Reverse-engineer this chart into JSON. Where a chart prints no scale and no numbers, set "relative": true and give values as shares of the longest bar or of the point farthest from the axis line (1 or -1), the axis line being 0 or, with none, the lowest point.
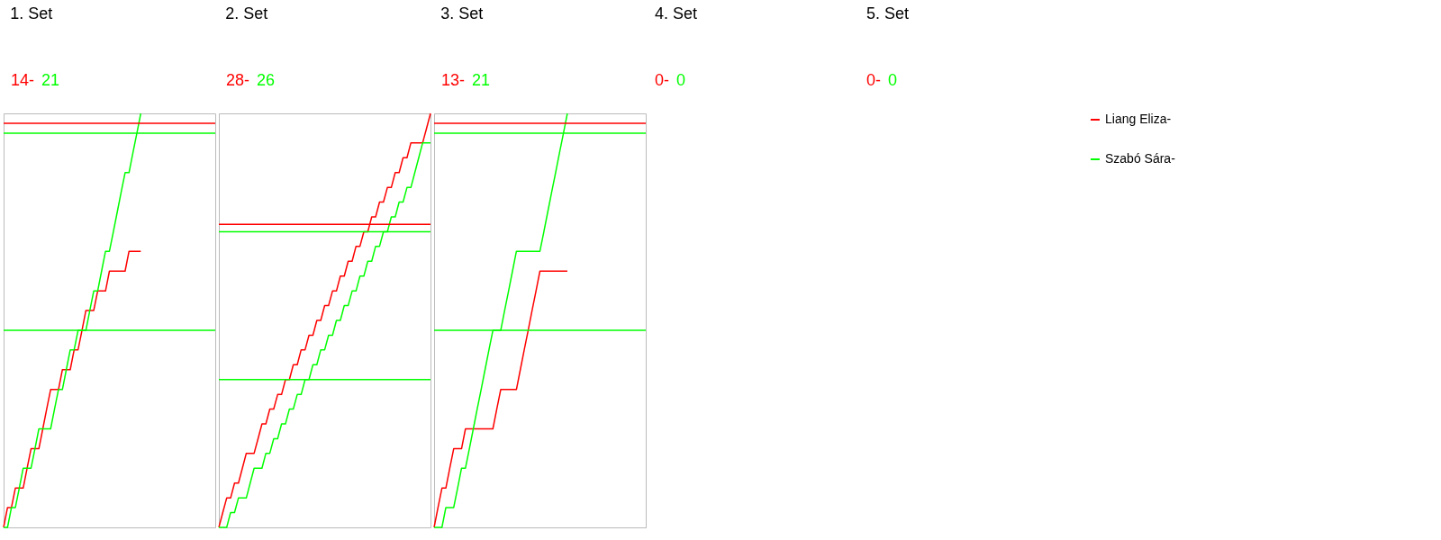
{
  "chart_data": [
    {
      "type": "line",
      "relative": true,
      "title": "1. Set",
      "annotations": [
        "14-",
        "21"
      ],
      "legend": "right",
      "categories": [
        null,
        null,
        null,
        null,
        null,
        null,
        null,
        null,
        null,
        null,
        null,
        null,
        null,
        null,
        null,
        null,
        null,
        null,
        null,
        null,
        null,
        null,
        null,
        null,
        null,
        null,
        null,
        null,
        null,
        null,
        null,
        null,
        null,
        null,
        null,
        null,
        null,
        null,
        null,
        null,
        null,
        null,
        null,
        null,
        null,
        null,
        null,
        null,
        null,
        null,
        null,
        null,
        null,
        null,
        null
      ],
      "series": [
        {
          "name": "Liang Eliza-",
          "color": "#ff0000",
          "values": [
            0,
            0.048,
            0.048,
            0.095,
            0.095,
            0.095,
            0.143,
            0.19,
            0.19,
            0.19,
            0.238,
            0.286,
            0.333,
            0.333,
            0.333,
            0.381,
            0.381,
            0.381,
            0.429,
            0.429,
            0.476,
            0.524,
            0.524,
            0.524,
            0.571,
            0.571,
            0.571,
            0.619,
            0.619,
            0.619,
            0.619,
            0.619,
            0.667,
            0.667,
            0.667,
            0.667,
            null,
            null,
            null,
            null,
            null,
            null,
            null,
            null,
            null,
            null,
            null,
            null,
            null,
            null,
            null,
            null,
            null,
            null,
            null
          ]
        },
        {
          "name": "Szabó Sára-",
          "color": "#00ff00",
          "values": [
            0,
            0,
            0.048,
            0.048,
            0.095,
            0.143,
            0.143,
            0.143,
            0.19,
            0.238,
            0.238,
            0.238,
            0.238,
            0.286,
            0.333,
            0.333,
            0.381,
            0.429,
            0.429,
            0.476,
            0.476,
            0.476,
            0.524,
            0.571,
            0.571,
            0.619,
            0.667,
            0.667,
            0.714,
            0.762,
            0.81,
            0.857,
            0.857,
            0.905,
            0.952,
            1,
            null,
            null,
            null,
            null,
            null,
            null,
            null,
            null,
            null,
            null,
            null,
            null,
            null,
            null,
            null,
            null,
            null,
            null,
            null
          ]
        }
      ],
      "ref_lines": [
        {
          "axis": "y",
          "value": 0.976,
          "color": "#ff0000"
        },
        {
          "axis": "y",
          "value": 0.952,
          "color": "#00ff00"
        },
        {
          "axis": "y",
          "value": 0.476,
          "color": "#00ff00"
        }
      ]
    },
    {
      "type": "line",
      "relative": true,
      "title": "2. Set",
      "annotations": [
        "28-",
        "26"
      ],
      "categories": [
        null,
        null,
        null,
        null,
        null,
        null,
        null,
        null,
        null,
        null,
        null,
        null,
        null,
        null,
        null,
        null,
        null,
        null,
        null,
        null,
        null,
        null,
        null,
        null,
        null,
        null,
        null,
        null,
        null,
        null,
        null,
        null,
        null,
        null,
        null,
        null,
        null,
        null,
        null,
        null,
        null,
        null,
        null,
        null,
        null,
        null,
        null,
        null,
        null,
        null,
        null,
        null,
        null,
        null,
        null
      ],
      "series": [
        {
          "color": "#ff0000",
          "values": [
            0,
            0.036,
            0.071,
            0.071,
            0.107,
            0.107,
            0.143,
            0.179,
            0.179,
            0.179,
            0.214,
            0.25,
            0.25,
            0.286,
            0.286,
            0.321,
            0.321,
            0.357,
            0.357,
            0.393,
            0.393,
            0.429,
            0.429,
            0.464,
            0.464,
            0.5,
            0.5,
            0.536,
            0.536,
            0.571,
            0.571,
            0.607,
            0.607,
            0.643,
            0.643,
            0.679,
            0.679,
            0.714,
            0.714,
            0.75,
            0.75,
            0.786,
            0.786,
            0.821,
            0.821,
            0.857,
            0.857,
            0.893,
            0.893,
            0.929,
            0.929,
            0.929,
            0.929,
            0.964,
            1
          ]
        },
        {
          "color": "#00ff00",
          "values": [
            0,
            0,
            0,
            0.036,
            0.036,
            0.071,
            0.071,
            0.071,
            0.107,
            0.143,
            0.143,
            0.143,
            0.179,
            0.179,
            0.214,
            0.214,
            0.25,
            0.25,
            0.286,
            0.286,
            0.321,
            0.321,
            0.357,
            0.357,
            0.393,
            0.393,
            0.429,
            0.429,
            0.464,
            0.464,
            0.5,
            0.5,
            0.536,
            0.536,
            0.571,
            0.571,
            0.607,
            0.607,
            0.643,
            0.643,
            0.679,
            0.679,
            0.714,
            0.714,
            0.75,
            0.75,
            0.786,
            0.786,
            0.821,
            0.821,
            0.857,
            0.893,
            0.929,
            0.929,
            0.929
          ]
        }
      ],
      "ref_lines": [
        {
          "axis": "y",
          "value": 0.732,
          "color": "#ff0000"
        },
        {
          "axis": "y",
          "value": 0.714,
          "color": "#00ff00"
        },
        {
          "axis": "y",
          "value": 0.357,
          "color": "#00ff00"
        }
      ]
    },
    {
      "type": "line",
      "relative": true,
      "title": "3. Set",
      "annotations": [
        "13-",
        "21"
      ],
      "categories": [
        null,
        null,
        null,
        null,
        null,
        null,
        null,
        null,
        null,
        null,
        null,
        null,
        null,
        null,
        null,
        null,
        null,
        null,
        null,
        null,
        null,
        null,
        null,
        null,
        null,
        null,
        null,
        null,
        null,
        null,
        null,
        null,
        null,
        null,
        null,
        null,
        null,
        null,
        null,
        null,
        null,
        null,
        null,
        null,
        null,
        null,
        null,
        null,
        null,
        null,
        null,
        null,
        null,
        null,
        null
      ],
      "series": [
        {
          "color": "#ff0000",
          "values": [
            0,
            0.048,
            0.095,
            0.095,
            0.143,
            0.19,
            0.19,
            0.19,
            0.238,
            0.238,
            0.238,
            0.238,
            0.238,
            0.238,
            0.238,
            0.238,
            0.286,
            0.333,
            0.333,
            0.333,
            0.333,
            0.333,
            0.381,
            0.429,
            0.476,
            0.524,
            0.571,
            0.619,
            0.619,
            0.619,
            0.619,
            0.619,
            0.619,
            0.619,
            0.619,
            null,
            null,
            null,
            null,
            null,
            null,
            null,
            null,
            null,
            null,
            null,
            null,
            null,
            null,
            null,
            null,
            null,
            null,
            null,
            null
          ]
        },
        {
          "color": "#00ff00",
          "values": [
            0,
            0,
            0,
            0.048,
            0.048,
            0.048,
            0.095,
            0.143,
            0.143,
            0.19,
            0.238,
            0.286,
            0.333,
            0.381,
            0.429,
            0.476,
            0.476,
            0.476,
            0.524,
            0.571,
            0.619,
            0.667,
            0.667,
            0.667,
            0.667,
            0.667,
            0.667,
            0.667,
            0.714,
            0.762,
            0.81,
            0.857,
            0.905,
            0.952,
            1,
            null,
            null,
            null,
            null,
            null,
            null,
            null,
            null,
            null,
            null,
            null,
            null,
            null,
            null,
            null,
            null,
            null,
            null,
            null,
            null
          ]
        }
      ],
      "ref_lines": [
        {
          "axis": "y",
          "value": 0.976,
          "color": "#ff0000"
        },
        {
          "axis": "y",
          "value": 0.952,
          "color": "#00ff00"
        },
        {
          "axis": "y",
          "value": 0.476,
          "color": "#00ff00"
        }
      ]
    },
    {
      "type": "other",
      "title": "4. Set",
      "annotations": [
        "0-",
        "0"
      ]
    },
    {
      "type": "other",
      "title": "5. Set",
      "annotations": [
        "0-",
        "0"
      ]
    }
  ]
}
